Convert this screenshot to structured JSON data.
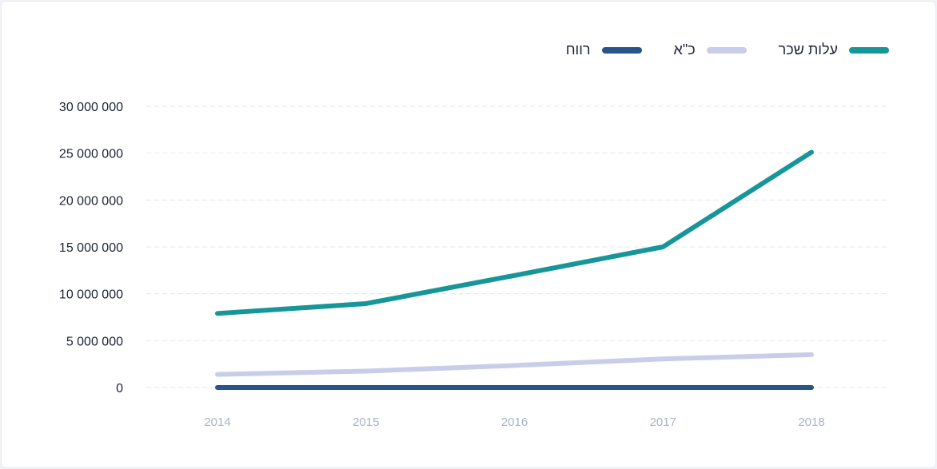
{
  "chart_data": {
    "type": "line",
    "categories": [
      "2014",
      "2015",
      "2016",
      "2017",
      "2018"
    ],
    "ylim": [
      0,
      30000000
    ],
    "yticks": [
      "0",
      "5 000 000",
      "10 000 000",
      "15 000 000",
      "20 000 000",
      "25 000 000",
      "30 000 000"
    ],
    "ytick_values": [
      0,
      5000000,
      10000000,
      15000000,
      20000000,
      25000000,
      30000000
    ],
    "grid": true,
    "legend_position": "top-right",
    "series": [
      {
        "name": "עלות שכר",
        "color": "#17969a",
        "values": [
          7900000,
          8950000,
          11950000,
          15000000,
          25100000
        ]
      },
      {
        "name": "כ\"א",
        "color": "#c9cde9",
        "values": [
          1400000,
          1750000,
          2350000,
          3050000,
          3500000
        ]
      },
      {
        "name": "רווח",
        "color": "#27548a",
        "values": [
          0,
          0,
          0,
          0,
          0
        ]
      }
    ]
  }
}
